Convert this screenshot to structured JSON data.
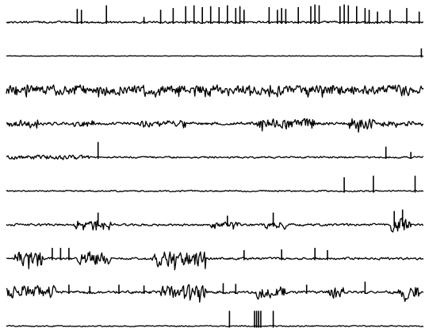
{
  "chart_data": {
    "type": "line",
    "title": "",
    "xlabel": "",
    "ylabel": "",
    "grid": false,
    "legend": "none",
    "axes_visible": false,
    "line_color": "#000000",
    "background_color": "#ffffff",
    "x_range": [
      0,
      1
    ],
    "y_range": [
      -1,
      1
    ],
    "series": [
      {
        "noise": 0.12,
        "bursts": [],
        "spikes": [
          [
            0.17,
            0.75
          ],
          [
            0.18,
            0.7
          ],
          [
            0.24,
            0.95
          ],
          [
            0.33,
            0.3
          ],
          [
            0.37,
            0.7
          ],
          [
            0.4,
            0.8
          ],
          [
            0.43,
            0.9
          ],
          [
            0.45,
            0.95
          ],
          [
            0.47,
            0.85
          ],
          [
            0.49,
            0.9
          ],
          [
            0.51,
            0.85
          ],
          [
            0.53,
            0.95
          ],
          [
            0.55,
            0.8
          ],
          [
            0.56,
            0.9
          ],
          [
            0.57,
            0.7
          ],
          [
            0.63,
            0.85
          ],
          [
            0.65,
            0.7
          ],
          [
            0.66,
            0.8
          ],
          [
            0.67,
            0.75
          ],
          [
            0.7,
            0.85
          ],
          [
            0.73,
            0.9
          ],
          [
            0.74,
            1.0
          ],
          [
            0.75,
            0.95
          ],
          [
            0.8,
            0.9
          ],
          [
            0.81,
            1.0
          ],
          [
            0.82,
            0.95
          ],
          [
            0.84,
            0.9
          ],
          [
            0.86,
            0.8
          ],
          [
            0.87,
            0.7
          ],
          [
            0.89,
            0.6
          ],
          [
            0.92,
            0.7
          ],
          [
            0.96,
            0.8
          ],
          [
            0.99,
            0.6
          ]
        ]
      },
      {
        "noise": 0.08,
        "bursts": [],
        "spikes": [
          [
            0.995,
            1.0
          ]
        ]
      },
      {
        "noise": 0.65,
        "bursts": [],
        "spikes": []
      },
      {
        "noise": 0.2,
        "bursts": [
          [
            0.0,
            0.08,
            0.45
          ],
          [
            0.16,
            0.21,
            0.4
          ],
          [
            0.32,
            0.43,
            0.45
          ],
          [
            0.6,
            0.74,
            0.65
          ],
          [
            0.82,
            0.88,
            0.85
          ],
          [
            0.88,
            1.0,
            0.35
          ]
        ],
        "spikes": []
      },
      {
        "noise": 0.12,
        "bursts": [
          [
            0.0,
            0.2,
            0.3
          ]
        ],
        "spikes": [
          [
            0.22,
            1.0
          ],
          [
            0.91,
            0.7
          ],
          [
            0.97,
            0.35
          ]
        ]
      },
      {
        "noise": 0.1,
        "bursts": [],
        "spikes": [
          [
            0.81,
            0.9
          ],
          [
            0.88,
            1.0
          ],
          [
            0.98,
            1.0
          ]
        ]
      },
      {
        "noise": 0.15,
        "bursts": [
          [
            0.16,
            0.25,
            0.5
          ],
          [
            0.49,
            0.56,
            0.4
          ],
          [
            0.62,
            0.67,
            0.55
          ],
          [
            0.92,
            0.97,
            0.95
          ]
        ],
        "spikes": [
          [
            0.22,
            0.8
          ],
          [
            0.53,
            0.6
          ],
          [
            0.64,
            0.8
          ],
          [
            0.93,
            0.9
          ],
          [
            0.95,
            1.0
          ]
        ]
      },
      {
        "noise": 0.15,
        "bursts": [
          [
            0.02,
            0.09,
            1.0
          ],
          [
            0.17,
            0.25,
            0.95
          ],
          [
            0.35,
            0.48,
            1.0
          ]
        ],
        "spikes": [
          [
            0.11,
            0.7
          ],
          [
            0.13,
            0.7
          ],
          [
            0.15,
            0.7
          ],
          [
            0.57,
            0.55
          ],
          [
            0.66,
            0.6
          ],
          [
            0.74,
            0.7
          ],
          [
            0.77,
            0.55
          ]
        ]
      },
      {
        "noise": 0.18,
        "bursts": [
          [
            0.0,
            0.12,
            0.9
          ],
          [
            0.37,
            0.48,
            0.9
          ],
          [
            0.6,
            0.67,
            0.85
          ],
          [
            0.77,
            0.81,
            0.8
          ],
          [
            0.94,
            0.99,
            0.9
          ]
        ],
        "spikes": [
          [
            0.15,
            0.5
          ],
          [
            0.2,
            0.4
          ],
          [
            0.27,
            0.5
          ],
          [
            0.33,
            0.45
          ],
          [
            0.52,
            0.6
          ],
          [
            0.55,
            0.55
          ],
          [
            0.72,
            0.5
          ],
          [
            0.86,
            0.7
          ]
        ]
      },
      {
        "noise": 0.08,
        "bursts": [],
        "spikes": [
          [
            0.535,
            1.0
          ],
          [
            0.595,
            1.0
          ],
          [
            0.6,
            1.0
          ],
          [
            0.605,
            1.0
          ],
          [
            0.61,
            1.0
          ],
          [
            0.64,
            1.0
          ]
        ]
      }
    ]
  }
}
